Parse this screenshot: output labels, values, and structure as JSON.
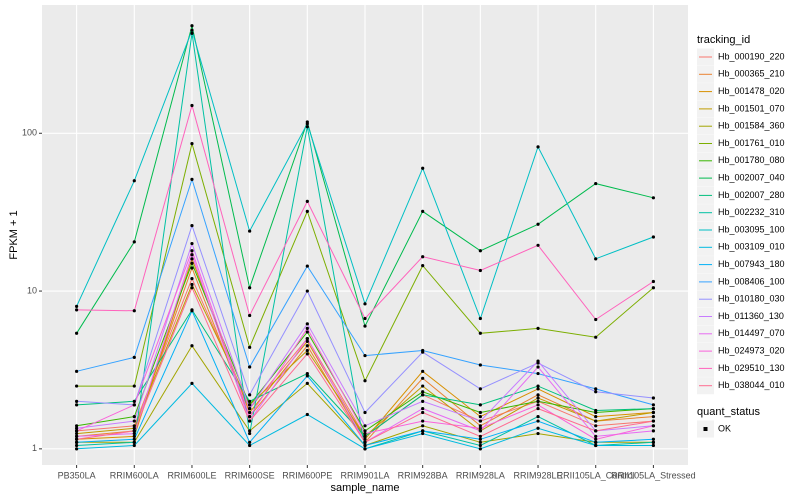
{
  "chart_data": {
    "type": "line",
    "log_y": true,
    "grid": true,
    "x_label": "sample_name",
    "y_label": "FPKM + 1",
    "categories": [
      "PB350LA",
      "RRIM600LA",
      "RRIM600LE",
      "RRIM600SE",
      "RRIM600PE",
      "RRIM901LA",
      "RRIM928BA",
      "RRIM928LA",
      "RRIM928LE",
      "RRII105LA_Control",
      "RRII105LA_Stressed"
    ],
    "ylim": [
      0.79,
      650
    ],
    "yticks": [
      1,
      10,
      100
    ],
    "legend_title": "tracking_id",
    "legend_position": "right",
    "shape_legend_title": "quant_status",
    "shape_legend_items": [
      "OK"
    ],
    "series": [
      {
        "name": "Hb_000190_220",
        "color": "#F8766D",
        "values": [
          1.3,
          1.4,
          12,
          1.8,
          5,
          1.2,
          2.2,
          1.5,
          2.0,
          1.4,
          1.5
        ]
      },
      {
        "name": "Hb_000365_210",
        "color": "#EA8331",
        "values": [
          1.2,
          1.3,
          14,
          1.6,
          4.5,
          1.1,
          2.8,
          1.4,
          2.2,
          1.5,
          1.6
        ]
      },
      {
        "name": "Hb_001478_020",
        "color": "#D89000",
        "values": [
          1.15,
          1.2,
          16,
          1.7,
          4.8,
          1.15,
          3.1,
          1.6,
          2.4,
          1.6,
          1.7
        ]
      },
      {
        "name": "Hb_001501_070",
        "color": "#C09B00",
        "values": [
          1.25,
          1.35,
          11,
          1.9,
          4.2,
          1.2,
          2.5,
          1.3,
          2.1,
          1.5,
          1.7
        ]
      },
      {
        "name": "Hb_001584_360",
        "color": "#A3A500",
        "values": [
          1.1,
          1.1,
          4.5,
          1.3,
          2.6,
          1.05,
          1.4,
          1.1,
          1.25,
          1.1,
          1.1
        ]
      },
      {
        "name": "Hb_001761_010",
        "color": "#7CAE00",
        "values": [
          2.5,
          2.5,
          86,
          4.4,
          32,
          2.7,
          14.5,
          5.4,
          5.8,
          5.1,
          10.5
        ]
      },
      {
        "name": "Hb_001780_080",
        "color": "#39B600",
        "values": [
          1.4,
          1.6,
          15,
          1.9,
          5.5,
          1.3,
          2.3,
          1.7,
          2.0,
          1.7,
          1.8
        ]
      },
      {
        "name": "Hb_002007_040",
        "color": "#00BB4E",
        "values": [
          5.4,
          20.5,
          480,
          10.5,
          118,
          6,
          32,
          18,
          26.5,
          48,
          39
        ]
      },
      {
        "name": "Hb_002007_280",
        "color": "#00BF7D",
        "values": [
          1.9,
          2.0,
          7.6,
          2.0,
          3.0,
          1.2,
          2.2,
          1.9,
          2.5,
          1.75,
          1.8
        ]
      },
      {
        "name": "Hb_002232_310",
        "color": "#00C1A3",
        "values": [
          1.05,
          1.1,
          430,
          1.25,
          110,
          1.0,
          1.3,
          1.05,
          1.6,
          1.05,
          1.1
        ]
      },
      {
        "name": "Hb_003095_100",
        "color": "#00BFC4",
        "values": [
          8,
          50,
          450,
          24,
          115,
          8.3,
          60,
          6.7,
          82,
          16,
          22
        ]
      },
      {
        "name": "Hb_003109_010",
        "color": "#00BAE0",
        "values": [
          1.0,
          1.05,
          2.6,
          1.05,
          1.65,
          1.0,
          1.25,
          1.0,
          1.35,
          1.05,
          1.05
        ]
      },
      {
        "name": "Hb_007943_180",
        "color": "#00B0F6",
        "values": [
          1.1,
          1.15,
          7.5,
          1.1,
          2.9,
          1.05,
          1.3,
          1.15,
          1.5,
          1.1,
          1.15
        ]
      },
      {
        "name": "Hb_008406_100",
        "color": "#35A2FF",
        "values": [
          3.1,
          3.8,
          51,
          3.3,
          14.4,
          3.9,
          4.2,
          3.4,
          3.0,
          2.4,
          1.9
        ]
      },
      {
        "name": "Hb_010180_030",
        "color": "#9590FF",
        "values": [
          2.0,
          1.9,
          26,
          2.2,
          10,
          1.7,
          4.1,
          2.4,
          3.5,
          2.3,
          2.1
        ]
      },
      {
        "name": "Hb_011360_130",
        "color": "#C77CFF",
        "values": [
          1.35,
          1.5,
          20,
          1.8,
          6.2,
          1.4,
          2.0,
          1.5,
          3.6,
          1.3,
          1.4
        ]
      },
      {
        "name": "Hb_014497_070",
        "color": "#E76BF3",
        "values": [
          1.2,
          1.25,
          17,
          1.5,
          5,
          1.1,
          1.8,
          1.3,
          3.3,
          1.2,
          1.3
        ]
      },
      {
        "name": "Hb_024973_020",
        "color": "#FA62DB",
        "values": [
          1.3,
          1.9,
          18,
          1.6,
          5.8,
          1.25,
          1.5,
          1.35,
          1.9,
          1.15,
          1.4
        ]
      },
      {
        "name": "Hb_029510_130",
        "color": "#FF62BC",
        "values": [
          7.6,
          7.5,
          150,
          7,
          37,
          6.7,
          16.5,
          13.5,
          19.5,
          6.6,
          11.5
        ]
      },
      {
        "name": "Hb_038044_010",
        "color": "#FF6C91",
        "values": [
          1.15,
          1.3,
          10.5,
          1.5,
          4,
          1.1,
          1.7,
          1.2,
          1.8,
          1.3,
          1.5
        ]
      }
    ]
  }
}
